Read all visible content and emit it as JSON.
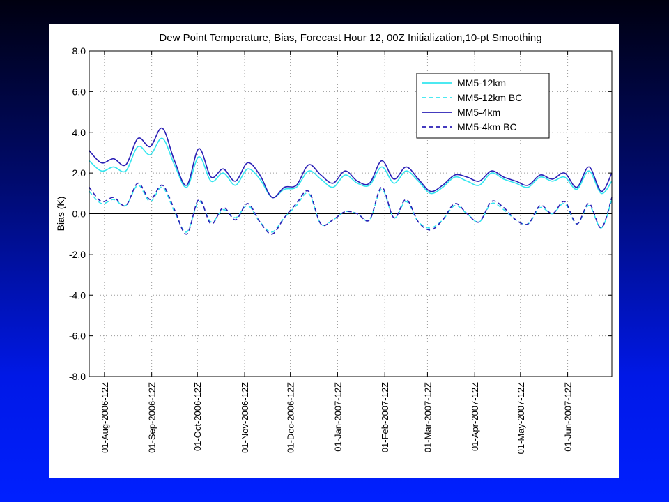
{
  "chart_data": {
    "type": "line",
    "title": "Dew Point Temperature, Bias, Forecast Hour 12, 00Z Initialization,10-pt Smoothing",
    "xlabel": "",
    "ylabel": "Bias (K)",
    "ylim": [
      -8.0,
      8.0
    ],
    "yticks": [
      "-8.0",
      "-6.0",
      "-4.0",
      "-2.0",
      "0.0",
      "2.0",
      "4.0",
      "6.0",
      "8.0"
    ],
    "xlim": [
      "2006-07-22",
      "2007-06-30"
    ],
    "xtick_dates": [
      "2006-08-01",
      "2006-09-01",
      "2006-10-01",
      "2006-11-01",
      "2006-12-01",
      "2007-01-01",
      "2007-02-01",
      "2007-03-01",
      "2007-04-01",
      "2007-05-01",
      "2007-06-01"
    ],
    "xtick_labels": [
      "01-Aug-2006-12Z",
      "01-Sep-2006-12Z",
      "01-Oct-2006-12Z",
      "01-Nov-2006-12Z",
      "01-Dec-2006-12Z",
      "01-Jan-2007-12Z",
      "01-Feb-2007-12Z",
      "01-Mar-2007-12Z",
      "01-Apr-2007-12Z",
      "01-May-2007-12Z",
      "01-Jun-2007-12Z"
    ],
    "grid": true,
    "zero_line": true,
    "legend_position": "top-right",
    "x": [
      "2006-07-22",
      "2006-07-30",
      "2006-08-07",
      "2006-08-15",
      "2006-08-23",
      "2006-08-31",
      "2006-09-08",
      "2006-09-16",
      "2006-09-24",
      "2006-10-02",
      "2006-10-10",
      "2006-10-18",
      "2006-10-26",
      "2006-11-03",
      "2006-11-11",
      "2006-11-19",
      "2006-11-27",
      "2006-12-05",
      "2006-12-13",
      "2006-12-21",
      "2006-12-29",
      "2007-01-06",
      "2007-01-14",
      "2007-01-22",
      "2007-01-30",
      "2007-02-07",
      "2007-02-15",
      "2007-02-23",
      "2007-03-03",
      "2007-03-11",
      "2007-03-19",
      "2007-03-27",
      "2007-04-04",
      "2007-04-12",
      "2007-04-20",
      "2007-04-28",
      "2007-05-06",
      "2007-05-14",
      "2007-05-22",
      "2007-05-30",
      "2007-06-07",
      "2007-06-15",
      "2007-06-23",
      "2007-06-30"
    ],
    "series": [
      {
        "name": "MM5-12km",
        "color": "#33e6ef",
        "dash": "solid",
        "values": [
          2.6,
          2.1,
          2.3,
          2.1,
          3.3,
          2.9,
          3.7,
          2.4,
          1.3,
          2.8,
          1.6,
          2.0,
          1.4,
          2.2,
          1.7,
          0.8,
          1.2,
          1.3,
          2.1,
          1.7,
          1.3,
          1.9,
          1.5,
          1.4,
          2.3,
          1.5,
          2.1,
          1.6,
          1.0,
          1.3,
          1.8,
          1.6,
          1.4,
          2.0,
          1.7,
          1.5,
          1.3,
          1.8,
          1.6,
          1.8,
          1.2,
          2.1,
          1.0,
          1.6
        ]
      },
      {
        "name": "MM5-12km BC",
        "color": "#33e6ef",
        "dash": "dashed",
        "values": [
          1.1,
          0.5,
          0.7,
          0.4,
          1.4,
          0.6,
          1.3,
          0.1,
          -0.9,
          0.6,
          -0.4,
          0.2,
          -0.2,
          0.4,
          -0.4,
          -0.9,
          -0.2,
          0.4,
          1.0,
          -0.5,
          -0.3,
          0.1,
          0.0,
          -0.3,
          1.2,
          -0.2,
          0.6,
          -0.4,
          -0.7,
          -0.3,
          0.4,
          0.0,
          -0.4,
          0.5,
          0.2,
          -0.3,
          -0.5,
          0.3,
          0.0,
          0.5,
          -0.5,
          0.4,
          -0.7,
          0.7
        ]
      },
      {
        "name": "MM5-4km",
        "color": "#2a1fb5",
        "dash": "solid",
        "values": [
          3.1,
          2.5,
          2.7,
          2.4,
          3.7,
          3.3,
          4.2,
          2.6,
          1.4,
          3.2,
          1.8,
          2.2,
          1.6,
          2.5,
          1.9,
          0.8,
          1.3,
          1.4,
          2.4,
          1.9,
          1.5,
          2.1,
          1.6,
          1.5,
          2.6,
          1.7,
          2.3,
          1.7,
          1.1,
          1.4,
          1.9,
          1.8,
          1.6,
          2.1,
          1.8,
          1.6,
          1.4,
          1.9,
          1.7,
          2.0,
          1.3,
          2.3,
          1.1,
          2.0
        ]
      },
      {
        "name": "MM5-4km BC",
        "color": "#2a1fb5",
        "dash": "dashed",
        "values": [
          1.3,
          0.6,
          0.8,
          0.4,
          1.5,
          0.7,
          1.4,
          0.2,
          -1.0,
          0.7,
          -0.5,
          0.3,
          -0.3,
          0.5,
          -0.4,
          -1.0,
          -0.2,
          0.5,
          1.1,
          -0.5,
          -0.3,
          0.1,
          0.0,
          -0.3,
          1.3,
          -0.2,
          0.7,
          -0.4,
          -0.8,
          -0.3,
          0.5,
          0.0,
          -0.4,
          0.6,
          0.3,
          -0.3,
          -0.5,
          0.4,
          0.0,
          0.6,
          -0.5,
          0.5,
          -0.7,
          0.8
        ]
      }
    ]
  }
}
